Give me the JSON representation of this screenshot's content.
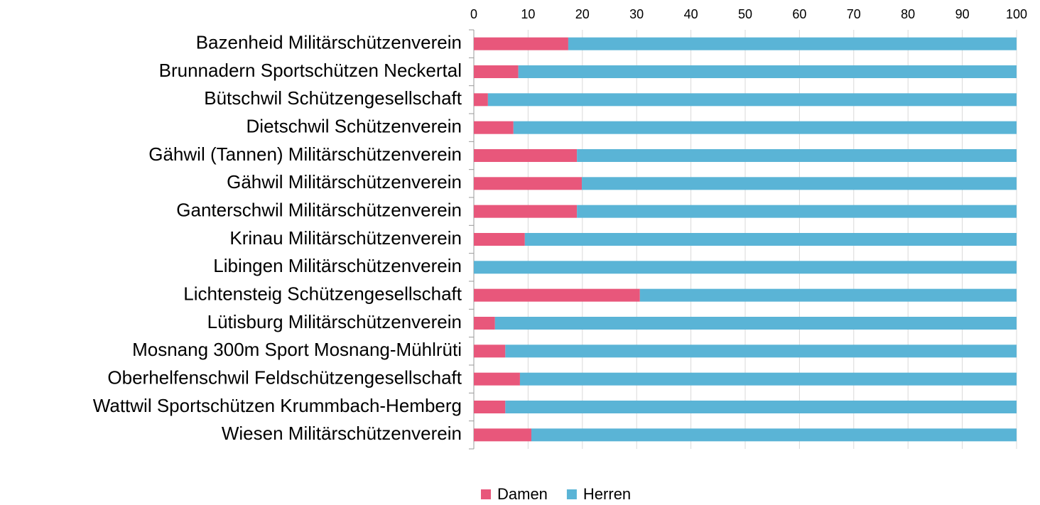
{
  "chart_data": {
    "type": "stacked-bar-horizontal",
    "categories": [
      "Bazenheid Militärschützenverein",
      "Brunnadern Sportschützen Neckertal",
      "Bütschwil Schützengesellschaft",
      "Dietschwil Schützenverein",
      "Gähwil (Tannen) Militärschützenverein",
      "Gähwil Militärschützenverein",
      "Ganterschwil Militärschützenverein",
      "Krinau Militärschützenverein",
      "Libingen Militärschützenverein",
      "Lichtensteig Schützengesellschaft",
      "Lütisburg Militärschützenverein",
      "Mosnang 300m Sport Mosnang-Mühlrüti",
      "Oberhelfenschwil Feldschützengesellschaft",
      "Wattwil Sportschützen Krummbach-Hemberg",
      "Wiesen Militärschützenverein"
    ],
    "series": [
      {
        "name": "Damen",
        "color": "#e8577b",
        "values": [
          17.4,
          8.2,
          2.6,
          7.3,
          19.0,
          19.9,
          19.0,
          9.4,
          0,
          30.6,
          3.9,
          5.8,
          8.5,
          5.8,
          10.6
        ]
      },
      {
        "name": "Herren",
        "color": "#5ab4d6",
        "values": [
          82.6,
          91.8,
          97.4,
          92.7,
          81.0,
          80.1,
          81.0,
          90.6,
          100,
          69.4,
          96.1,
          94.2,
          91.5,
          94.2,
          89.4
        ]
      }
    ],
    "xlim": [
      0,
      100
    ],
    "xticks": [
      0,
      10,
      20,
      30,
      40,
      50,
      60,
      70,
      80,
      90,
      100
    ],
    "grid": true,
    "legend": "bottom"
  }
}
